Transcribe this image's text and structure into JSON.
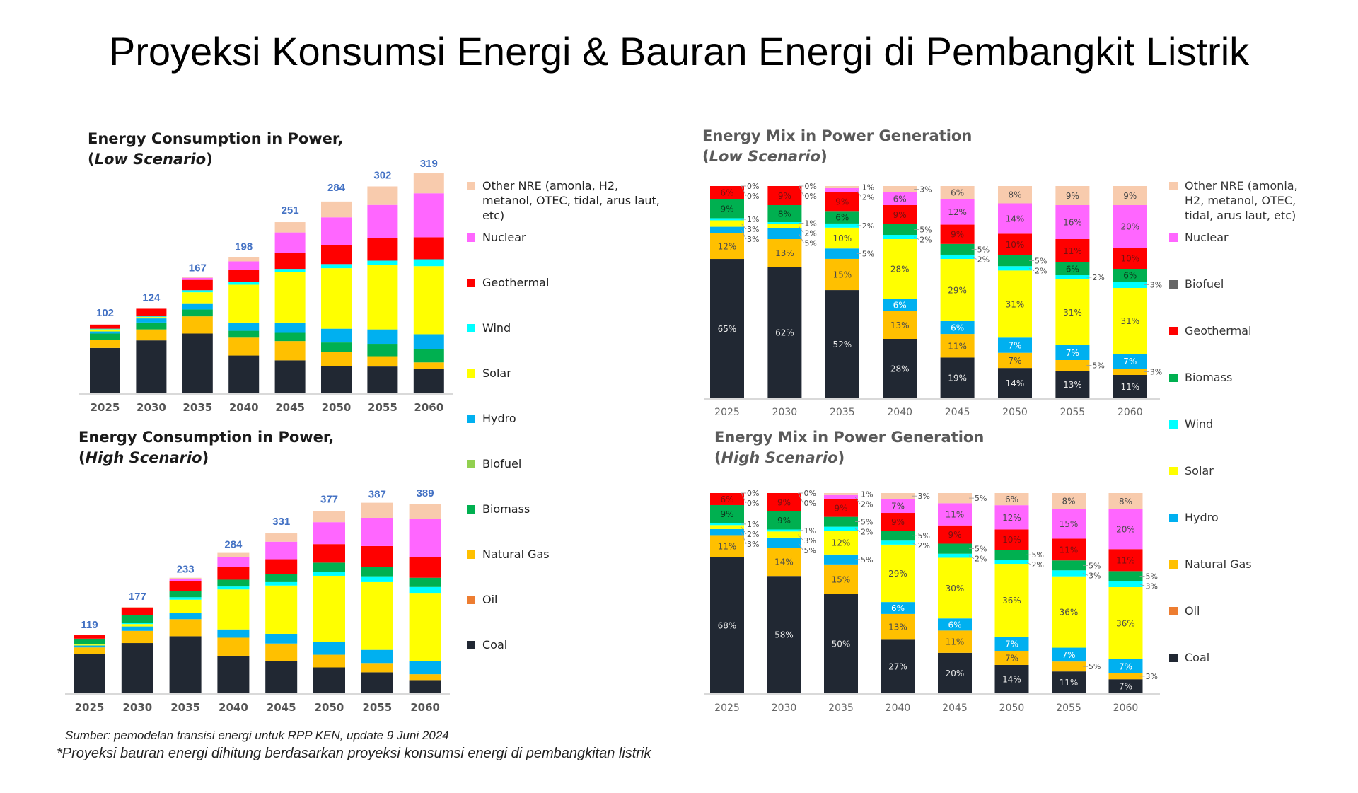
{
  "page": {
    "title": "Proyeksi Konsumsi Energi & Bauran Energi di Pembangkit Listrik",
    "source": "Sumber: pemodelan transisi energi untuk RPP KEN, update 9 Juni 2024",
    "note": "*Proyeksi bauran energi dihitung berdasarkan proyeksi konsumsi energi di pembangkitan listrik"
  },
  "colors": {
    "Coal": "#212833",
    "Oil": "#ed7d31",
    "Natural Gas": "#ffc000",
    "Biomass": "#00b050",
    "Biofuel_consumption": "#92d050",
    "Biofuel_mix": "#666666",
    "Hydro": "#00b0f0",
    "Solar": "#ffff00",
    "Wind": "#00ffff",
    "Geothermal": "#ff0000",
    "Nuclear": "#ff66ff",
    "Other NRE": "#f8cbad",
    "total_label": "#4472c4"
  },
  "legend_consumption": [
    {
      "key": "Other NRE",
      "label": "Other NRE (amonia, H2, metanol, OTEC, tidal, arus laut, etc)",
      "lines": [
        "Other NRE (amonia, H2,",
        "metanol, OTEC, tidal, arus laut,",
        "etc)"
      ]
    },
    {
      "key": "Nuclear",
      "label": "Nuclear"
    },
    {
      "key": "Geothermal",
      "label": "Geothermal"
    },
    {
      "key": "Wind",
      "label": "Wind"
    },
    {
      "key": "Solar",
      "label": "Solar"
    },
    {
      "key": "Hydro",
      "label": "Hydro"
    },
    {
      "key": "Biofuel_consumption",
      "label": "Biofuel"
    },
    {
      "key": "Biomass",
      "label": "Biomass"
    },
    {
      "key": "Natural Gas",
      "label": "Natural Gas"
    },
    {
      "key": "Oil",
      "label": "Oil"
    },
    {
      "key": "Coal",
      "label": "Coal"
    }
  ],
  "legend_mix": [
    {
      "key": "Other NRE",
      "label": "Other NRE (amonia, H2, metanol, OTEC, tidal, arus laut, etc)",
      "lines": [
        "Other NRE (amonia,",
        "H2, metanol, OTEC,",
        "tidal, arus laut, etc)"
      ]
    },
    {
      "key": "Nuclear",
      "label": "Nuclear"
    },
    {
      "key": "Biofuel_mix",
      "label": "Biofuel"
    },
    {
      "key": "Geothermal",
      "label": "Geothermal"
    },
    {
      "key": "Biomass",
      "label": "Biomass"
    },
    {
      "key": "Wind",
      "label": "Wind"
    },
    {
      "key": "Solar",
      "label": "Solar"
    },
    {
      "key": "Hydro",
      "label": "Hydro"
    },
    {
      "key": "Natural Gas",
      "label": "Natural Gas"
    },
    {
      "key": "Oil",
      "label": "Oil"
    },
    {
      "key": "Coal",
      "label": "Coal"
    }
  ],
  "chart_data": [
    {
      "id": "consumption-low",
      "type": "bar",
      "stacked": true,
      "title": "Energy Consumption in Power,",
      "subtitle": "Low Scenario",
      "categories": [
        "2025",
        "2030",
        "2035",
        "2040",
        "2045",
        "2050",
        "2055",
        "2060"
      ],
      "totals": [
        102,
        124,
        167,
        198,
        251,
        284,
        302,
        319
      ],
      "ylim": [
        0,
        319
      ],
      "series": [
        {
          "name": "Coal",
          "values": [
            66,
            77,
            87,
            55,
            48,
            40,
            39,
            35
          ]
        },
        {
          "name": "Natural Gas",
          "values": [
            12,
            16,
            25,
            26,
            28,
            20,
            15,
            10
          ]
        },
        {
          "name": "Biomass",
          "values": [
            9,
            10,
            10,
            10,
            12,
            14,
            18,
            19
          ]
        },
        {
          "name": "Hydro",
          "values": [
            3,
            6,
            8,
            12,
            15,
            20,
            21,
            22
          ]
        },
        {
          "name": "Solar",
          "values": [
            3,
            2,
            17,
            55,
            73,
            88,
            94,
            99
          ]
        },
        {
          "name": "Wind",
          "values": [
            1,
            1,
            3,
            4,
            5,
            6,
            6,
            10
          ]
        },
        {
          "name": "Geothermal",
          "values": [
            6,
            11,
            15,
            18,
            23,
            28,
            33,
            32
          ]
        },
        {
          "name": "Nuclear",
          "values": [
            0,
            0,
            3,
            12,
            30,
            40,
            48,
            64
          ]
        },
        {
          "name": "Other NRE",
          "values": [
            0,
            0,
            1,
            6,
            15,
            23,
            27,
            29
          ]
        }
      ]
    },
    {
      "id": "consumption-high",
      "type": "bar",
      "stacked": true,
      "title": "Energy Consumption in Power,",
      "subtitle": "High Scenario",
      "categories": [
        "2025",
        "2030",
        "2035",
        "2040",
        "2045",
        "2050",
        "2055",
        "2060"
      ],
      "totals": [
        119,
        177,
        233,
        284,
        331,
        377,
        387,
        389
      ],
      "ylim": [
        0,
        389
      ],
      "series": [
        {
          "name": "Coal",
          "values": [
            81,
            103,
            117,
            77,
            66,
            53,
            43,
            27
          ]
        },
        {
          "name": "Natural Gas",
          "values": [
            13,
            25,
            35,
            37,
            36,
            26,
            19,
            12
          ]
        },
        {
          "name": "Hydro",
          "values": [
            4,
            9,
            12,
            17,
            20,
            26,
            27,
            27
          ]
        },
        {
          "name": "Solar",
          "values": [
            2,
            5,
            28,
            82,
            99,
            136,
            139,
            140
          ]
        },
        {
          "name": "Wind",
          "values": [
            1,
            2,
            5,
            6,
            7,
            8,
            12,
            12
          ]
        },
        {
          "name": "Biomass",
          "values": [
            11,
            16,
            12,
            14,
            17,
            19,
            19,
            19
          ]
        },
        {
          "name": "Geothermal",
          "values": [
            7,
            16,
            21,
            26,
            30,
            38,
            43,
            43
          ]
        },
        {
          "name": "Nuclear",
          "values": [
            0,
            0,
            5,
            20,
            36,
            45,
            58,
            78
          ]
        },
        {
          "name": "Other NRE",
          "values": [
            0,
            1,
            2,
            9,
            17,
            23,
            31,
            31
          ]
        }
      ]
    },
    {
      "id": "mix-low",
      "type": "bar",
      "stacked": true,
      "percent": true,
      "title": "Energy Mix in Power Generation",
      "subtitle": "Low Scenario",
      "categories": [
        "2025",
        "2030",
        "2035",
        "2040",
        "2045",
        "2050",
        "2055",
        "2060"
      ],
      "ylim": [
        0,
        100
      ],
      "unit": "%",
      "series": [
        {
          "name": "Coal",
          "values": [
            65,
            62,
            52,
            28,
            19,
            14,
            13,
            11
          ]
        },
        {
          "name": "Natural Gas",
          "values": [
            12,
            13,
            15,
            13,
            11,
            7,
            5,
            3
          ]
        },
        {
          "name": "Hydro",
          "values": [
            3,
            5,
            5,
            6,
            6,
            7,
            7,
            7
          ]
        },
        {
          "name": "Solar",
          "values": [
            3,
            2,
            10,
            28,
            29,
            31,
            31,
            31
          ]
        },
        {
          "name": "Wind",
          "values": [
            1,
            1,
            2,
            2,
            2,
            2,
            2,
            3
          ]
        },
        {
          "name": "Biomass",
          "values": [
            9,
            8,
            6,
            5,
            5,
            5,
            6,
            6
          ]
        },
        {
          "name": "Geothermal",
          "values": [
            6,
            9,
            9,
            9,
            9,
            10,
            11,
            10
          ]
        },
        {
          "name": "Nuclear",
          "values": [
            0,
            0,
            2,
            6,
            12,
            14,
            16,
            20
          ]
        },
        {
          "name": "Other NRE",
          "values": [
            0,
            0,
            1,
            3,
            6,
            8,
            9,
            9
          ]
        }
      ]
    },
    {
      "id": "mix-high",
      "type": "bar",
      "stacked": true,
      "percent": true,
      "title": "Energy Mix in Power Generation",
      "subtitle": "High Scenario",
      "categories": [
        "2025",
        "2030",
        "2035",
        "2040",
        "2045",
        "2050",
        "2055",
        "2060"
      ],
      "ylim": [
        0,
        100
      ],
      "unit": "%",
      "series": [
        {
          "name": "Coal",
          "values": [
            68,
            58,
            50,
            27,
            20,
            14,
            11,
            7
          ]
        },
        {
          "name": "Natural Gas",
          "values": [
            11,
            14,
            15,
            13,
            11,
            7,
            5,
            3
          ]
        },
        {
          "name": "Hydro",
          "values": [
            3,
            5,
            5,
            6,
            6,
            7,
            7,
            7
          ]
        },
        {
          "name": "Solar",
          "values": [
            2,
            3,
            12,
            29,
            30,
            36,
            36,
            36
          ]
        },
        {
          "name": "Wind",
          "values": [
            1,
            1,
            2,
            2,
            2,
            2,
            3,
            3
          ]
        },
        {
          "name": "Biomass",
          "values": [
            9,
            9,
            5,
            5,
            5,
            5,
            5,
            5
          ]
        },
        {
          "name": "Geothermal",
          "values": [
            6,
            9,
            9,
            9,
            9,
            10,
            11,
            11
          ]
        },
        {
          "name": "Nuclear",
          "values": [
            0,
            0,
            2,
            7,
            11,
            12,
            15,
            20
          ]
        },
        {
          "name": "Other NRE",
          "values": [
            0,
            0,
            1,
            3,
            5,
            6,
            8,
            8
          ]
        }
      ]
    }
  ]
}
